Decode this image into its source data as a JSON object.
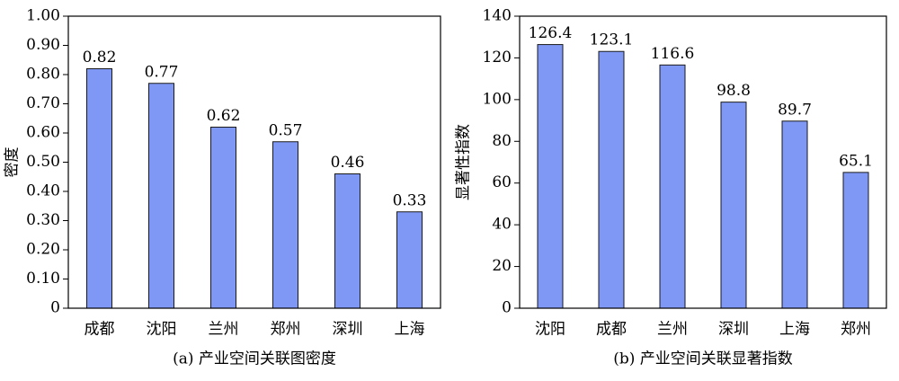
{
  "chart_data": [
    {
      "type": "bar",
      "title": "(a) 产业空间关联图密度",
      "y_label": "密度",
      "categories": [
        "成都",
        "沈阳",
        "兰州",
        "郑州",
        "深圳",
        "上海"
      ],
      "values": [
        0.82,
        0.77,
        0.62,
        0.57,
        0.46,
        0.33
      ],
      "color": "#7f98f5",
      "ylim": [
        0,
        1.0
      ],
      "yticks": [
        0,
        {
          "value": 0.1,
          "label": "0.10"
        },
        {
          "value": 0.2,
          "label": "0.20"
        },
        {
          "value": 0.3,
          "label": "0.30"
        },
        {
          "value": 0.4,
          "label": "0.40"
        },
        {
          "value": 0.5,
          "label": "0.50"
        },
        {
          "value": 0.6,
          "label": "0.60"
        },
        {
          "value": 0.7,
          "label": "0.70"
        },
        {
          "value": 0.8,
          "label": "0.80"
        },
        {
          "value": 0.9,
          "label": "0.90"
        },
        {
          "value": 1.0,
          "label": "1.00"
        }
      ]
    },
    {
      "type": "bar",
      "title": "(b) 产业空间关联显著指数",
      "y_label": "显著性指数",
      "categories": [
        "沈阳",
        "成都",
        "兰州",
        "深圳",
        "上海",
        "郑州"
      ],
      "values": [
        126.4,
        123.1,
        116.6,
        98.8,
        89.7,
        65.1
      ],
      "color": "#7f98f5",
      "ylim": [
        0,
        140
      ],
      "yticks": [
        0,
        20,
        40,
        60,
        80,
        100,
        120,
        140
      ]
    }
  ]
}
